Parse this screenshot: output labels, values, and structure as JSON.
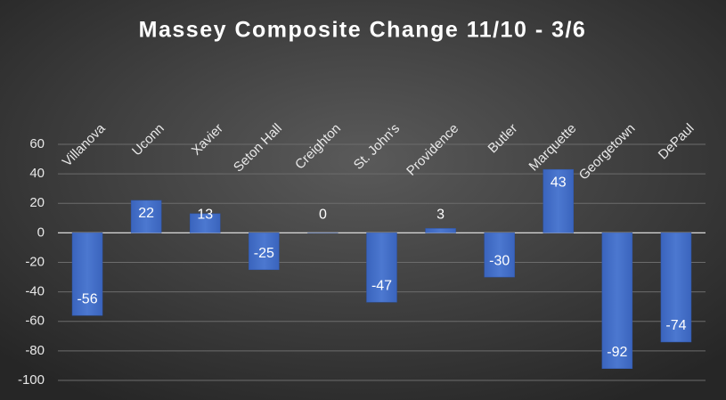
{
  "chart_data": {
    "type": "bar",
    "title": "Massey Composite Change 11/10 - 3/6",
    "categories": [
      "Villanova",
      "Uconn",
      "Xavier",
      "Seton Hall",
      "Creighton",
      "St. John's",
      "Providence",
      "Butler",
      "Marquette",
      "Georgetown",
      "DePaul"
    ],
    "values": [
      -56,
      22,
      13,
      -25,
      0,
      -47,
      3,
      -30,
      43,
      -92,
      -74
    ],
    "color": "#4472c4",
    "ylim": [
      -100,
      60
    ],
    "yticks": [
      -100,
      -80,
      -60,
      -40,
      -20,
      0,
      20,
      40,
      60
    ],
    "grid": true
  }
}
